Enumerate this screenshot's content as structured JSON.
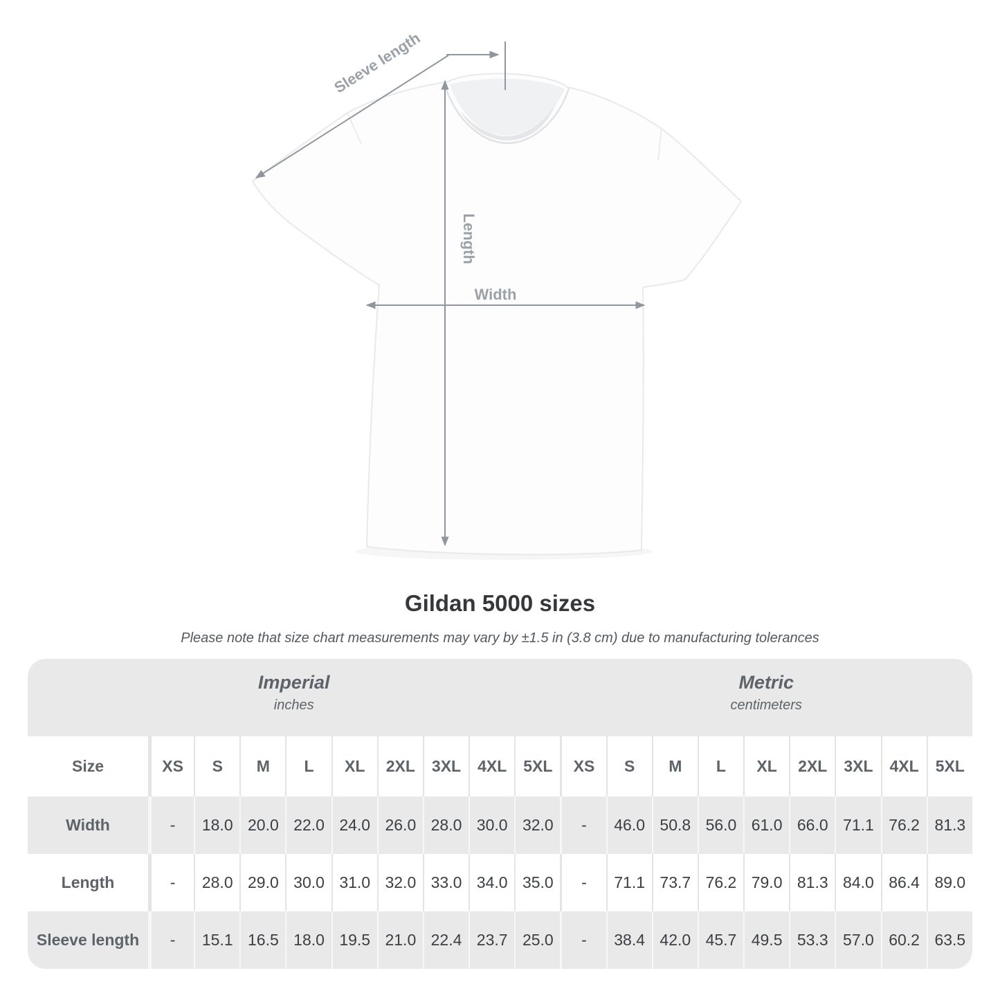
{
  "colors": {
    "title-text": "#35383b",
    "subtitle-text": "#54585c",
    "table-band": "#e9e9e9",
    "table-head-text": "#5d6368",
    "table-value-text": "#3b3f43",
    "sep-on-white": "#e4e4e4",
    "sep-on-gray": "#f7f7f7",
    "line-gray": "#8f969d",
    "label-gray": "#9aa1a8"
  },
  "diagram": {
    "sleeve_length_label": "Sleeve length",
    "length_label": "Length",
    "width_label": "Width"
  },
  "title": "Gildan 5000 sizes",
  "tolerance_note": "Please note that size chart measurements may vary by ±1.5 in (3.8 cm) due to manufacturing tolerances",
  "size_table": {
    "size_col_header": "Size",
    "unit_groups": [
      {
        "name": "Imperial",
        "unit": "inches"
      },
      {
        "name": "Metric",
        "unit": "centimeters"
      }
    ],
    "sizes": [
      "XS",
      "S",
      "M",
      "L",
      "XL",
      "2XL",
      "3XL",
      "4XL",
      "5XL"
    ],
    "rows": [
      {
        "label": "Width",
        "imperial": [
          "-",
          "18.0",
          "20.0",
          "22.0",
          "24.0",
          "26.0",
          "28.0",
          "30.0",
          "32.0"
        ],
        "metric": [
          "-",
          "46.0",
          "50.8",
          "56.0",
          "61.0",
          "66.0",
          "71.1",
          "76.2",
          "81.3"
        ]
      },
      {
        "label": "Length",
        "imperial": [
          "-",
          "28.0",
          "29.0",
          "30.0",
          "31.0",
          "32.0",
          "33.0",
          "34.0",
          "35.0"
        ],
        "metric": [
          "-",
          "71.1",
          "73.7",
          "76.2",
          "79.0",
          "81.3",
          "84.0",
          "86.4",
          "89.0"
        ]
      },
      {
        "label": "Sleeve length",
        "imperial": [
          "-",
          "15.1",
          "16.5",
          "18.0",
          "19.5",
          "21.0",
          "22.4",
          "23.7",
          "25.0"
        ],
        "metric": [
          "-",
          "38.4",
          "42.0",
          "45.7",
          "49.5",
          "53.3",
          "57.0",
          "60.2",
          "63.5"
        ]
      }
    ]
  }
}
